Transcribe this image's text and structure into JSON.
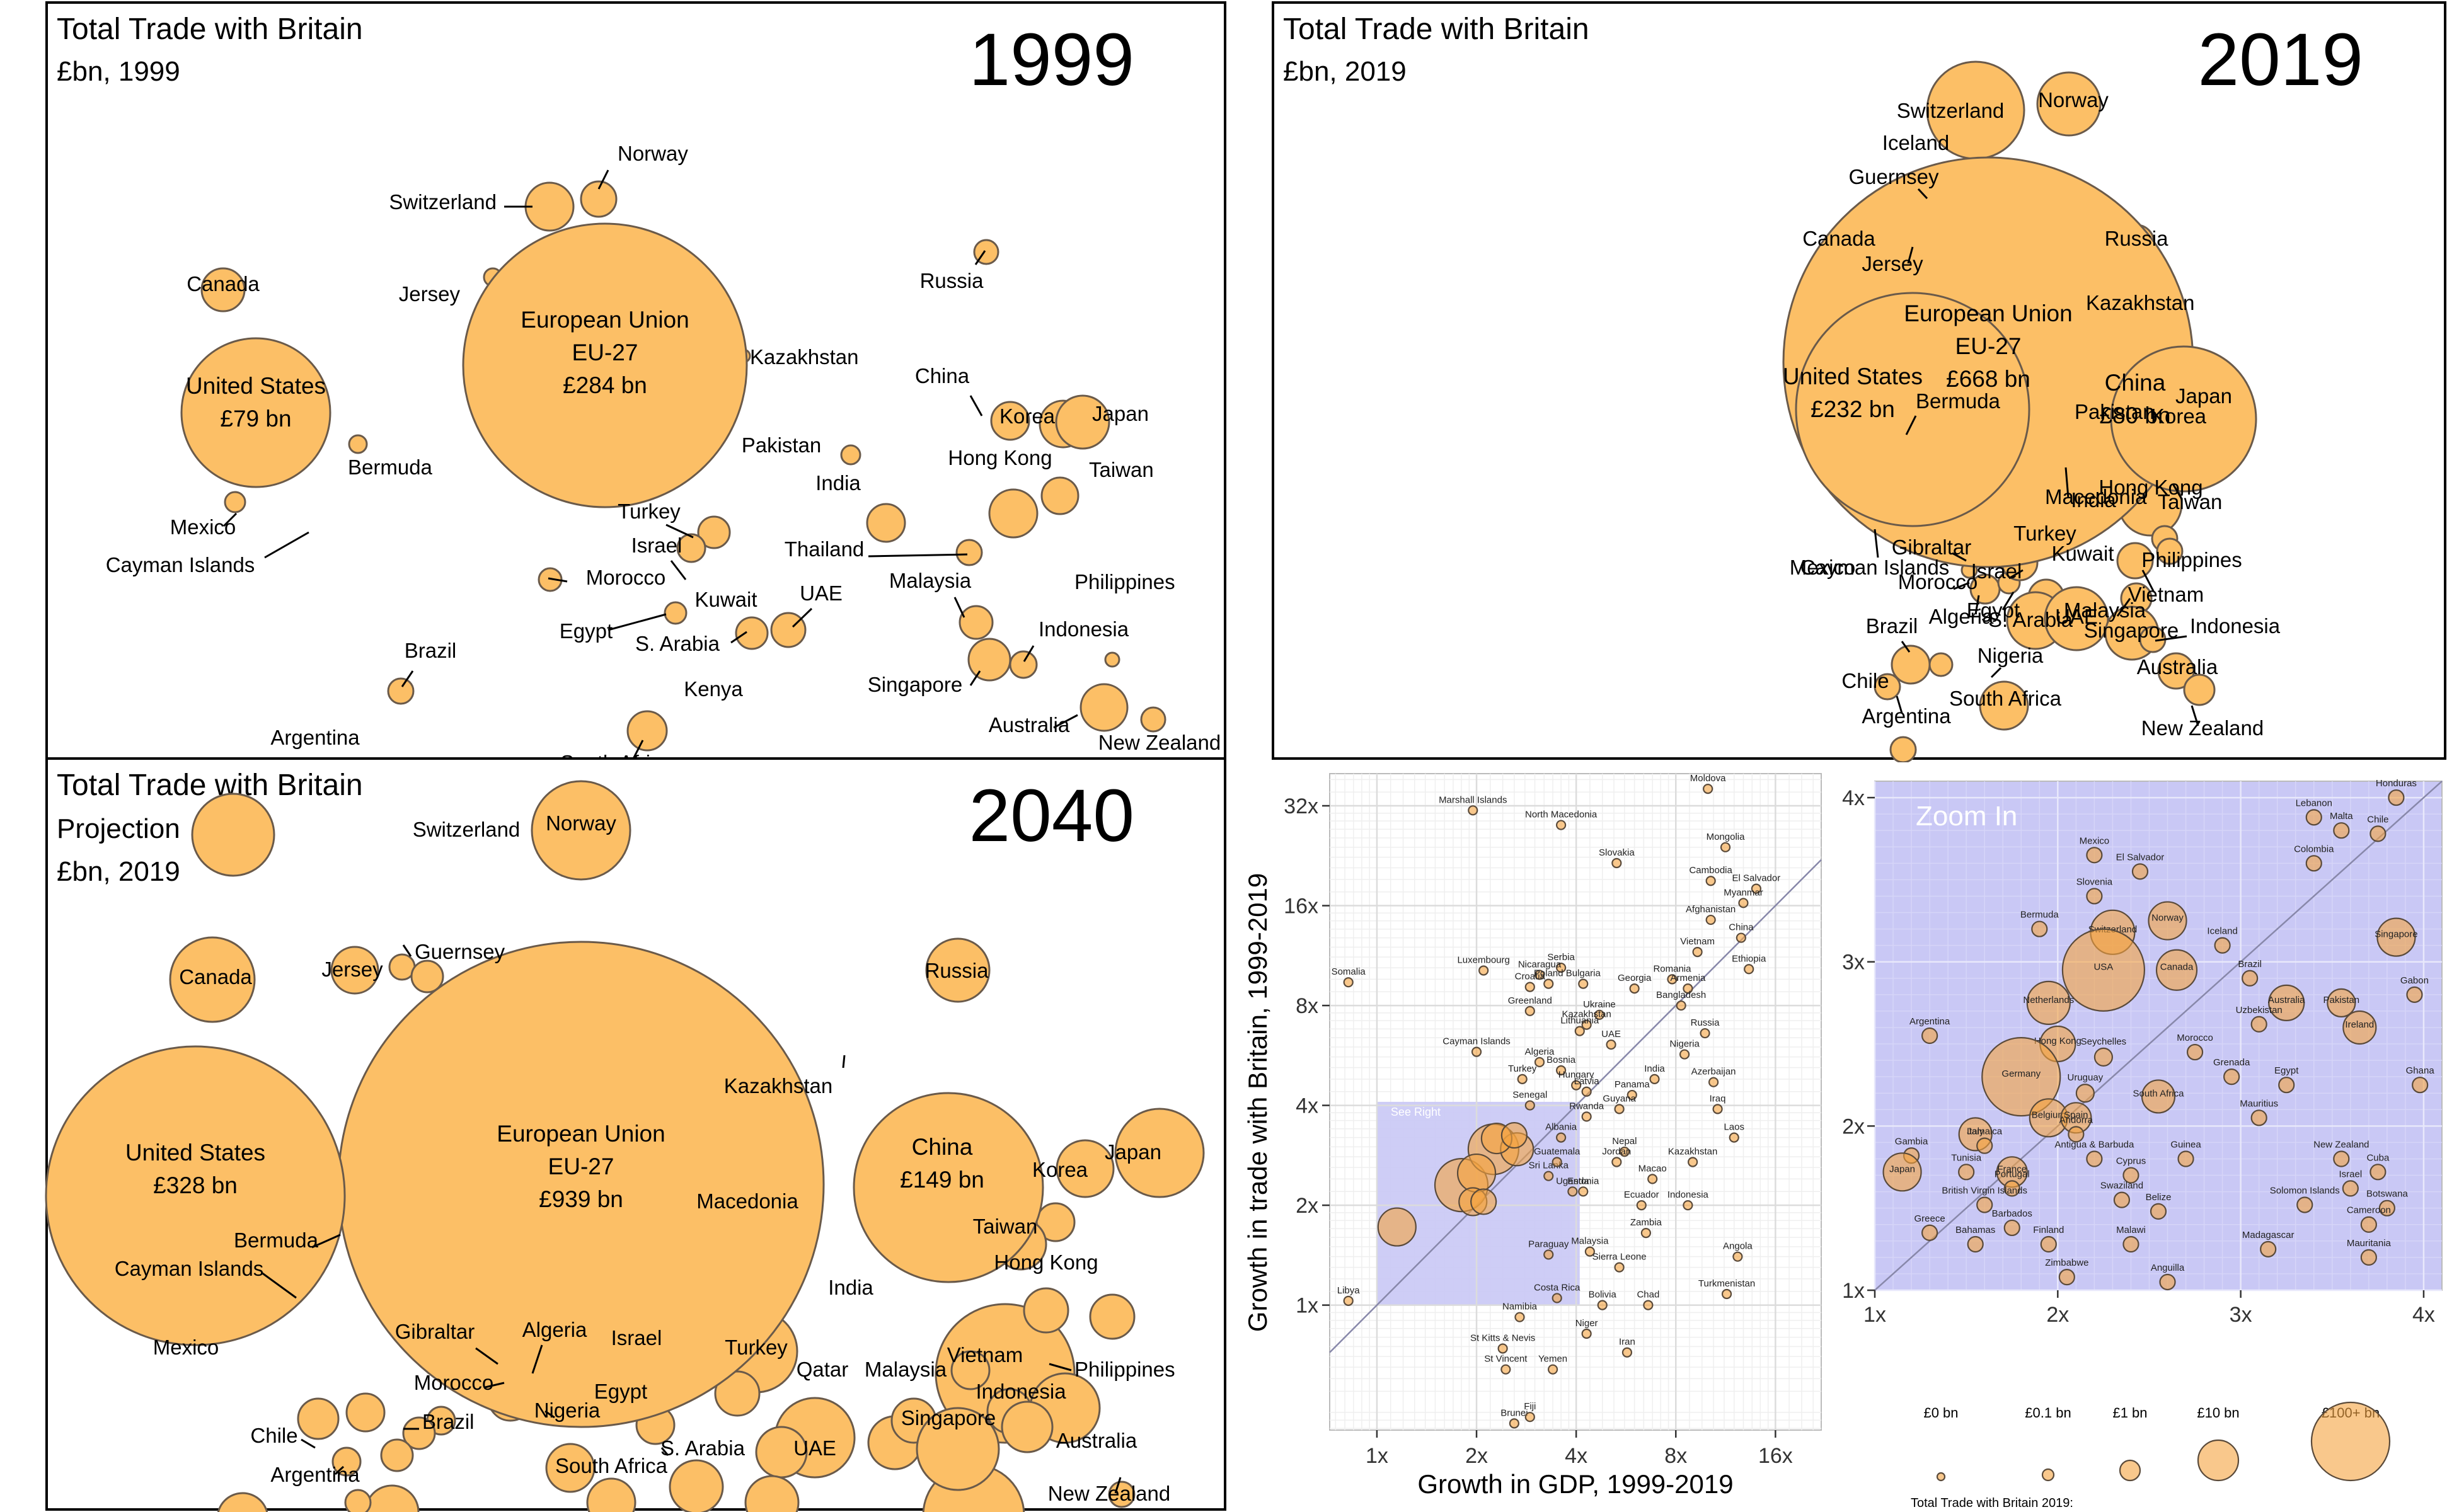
{
  "colors": {
    "bubble": "#fcbf66",
    "bubble_stroke": "#6a5a4a",
    "zoom_fill": "#c9c8f5",
    "grid": "#e6e6e6"
  },
  "chart_data": [
    {
      "type": "scatter",
      "title": "Total Trade with Britain",
      "subtitle": "£bn, 1999",
      "year": "1999",
      "featured": [
        {
          "name": "European Union",
          "sub": "EU-27",
          "value": "£284 bn"
        },
        {
          "name": "United States",
          "value": "£79 bn"
        }
      ],
      "labels": [
        "Norway",
        "Switzerland",
        "Jersey",
        "Canada",
        "Kazakhstan",
        "Russia",
        "China",
        "Korea",
        "Japan",
        "Pakistan",
        "Hong Kong",
        "Taiwan",
        "Bermuda",
        "India",
        "Mexico",
        "Cayman Islands",
        "Turkey",
        "Israel",
        "Morocco",
        "Thailand",
        "Kuwait",
        "UAE",
        "Malaysia",
        "Philippines",
        "Egypt",
        "S. Arabia",
        "Indonesia",
        "Brazil",
        "Kenya",
        "Singapore",
        "Australia",
        "New Zealand",
        "Argentina",
        "South Africa"
      ]
    },
    {
      "type": "scatter",
      "title": "Total Trade with Britain",
      "subtitle": "£bn, 2019",
      "year": "2019",
      "featured": [
        {
          "name": "European Union",
          "sub": "EU-27",
          "value": "£668 bn"
        },
        {
          "name": "United States",
          "value": "£232 bn"
        },
        {
          "name": "China",
          "value": "£80 bn"
        }
      ],
      "labels": [
        "Switzerland",
        "Norway",
        "Iceland",
        "Guernsey",
        "Canada",
        "Jersey",
        "Russia",
        "Kazakhstan",
        "Bermuda",
        "Pakistan",
        "Japan",
        "Korea",
        "Macedonia",
        "India",
        "Hong Kong",
        "Taiwan",
        "Mexico",
        "Cayman Islands",
        "Gibraltar",
        "Turkey",
        "Kuwait",
        "Philippines",
        "Morocco",
        "Israel",
        "Vietnam",
        "Algeria",
        "Egypt",
        "S. Arabia",
        "UAE",
        "Malaysia",
        "Singapore",
        "Indonesia",
        "Brazil",
        "Nigeria",
        "Australia",
        "Chile",
        "South Africa",
        "Argentina",
        "New Zealand"
      ]
    },
    {
      "type": "scatter",
      "title": "Total Trade with Britain",
      "subtitle_lines": [
        "Projection",
        "£bn, 2019"
      ],
      "year": "2040",
      "featured": [
        {
          "name": "European Union",
          "sub": "EU-27",
          "value": "£939 bn"
        },
        {
          "name": "United States",
          "value": "£328 bn"
        },
        {
          "name": "China",
          "value": "£149 bn"
        }
      ],
      "labels": [
        "Switzerland",
        "Norway",
        "Guernsey",
        "Jersey",
        "Canada",
        "Russia",
        "Kazakhstan",
        "Japan",
        "Korea",
        "Taiwan",
        "Macedonia",
        "Hong Kong",
        "Bermuda",
        "Cayman Islands",
        "India",
        "Mexico",
        "Gibraltar",
        "Algeria",
        "Israel",
        "Turkey",
        "Vietnam",
        "Philippines",
        "Morocco",
        "Qatar",
        "Malaysia",
        "Indonesia",
        "Egypt",
        "Nigeria",
        "Singapore",
        "Chile",
        "Brazil",
        "S. Arabia",
        "UAE",
        "Australia",
        "South Africa",
        "Argentina",
        "New Zealand"
      ]
    },
    {
      "type": "scatter",
      "xlabel": "Growth in GDP, 1999-2019",
      "ylabel": "Growth in trade with Britain, 1999-2019",
      "x_scale": "log2",
      "y_scale": "log2",
      "xticks": [
        "1x",
        "2x",
        "4x",
        "8x",
        "16x"
      ],
      "yticks": [
        "1x",
        "2x",
        "4x",
        "8x",
        "16x",
        "32x"
      ],
      "xlim": [
        0.72,
        22
      ],
      "ylim": [
        0.42,
        40
      ],
      "region_label": "See Right",
      "points": [
        {
          "name": "Moldova",
          "x": 10,
          "y": 36
        },
        {
          "name": "Marshall Islands",
          "x": 1.95,
          "y": 31
        },
        {
          "name": "North Macedonia",
          "x": 3.6,
          "y": 28
        },
        {
          "name": "Mongolia",
          "x": 11.3,
          "y": 24
        },
        {
          "name": "Slovakia",
          "x": 5.3,
          "y": 21.5
        },
        {
          "name": "Cambodia",
          "x": 10.2,
          "y": 19
        },
        {
          "name": "El Salvador",
          "x": 14,
          "y": 18
        },
        {
          "name": "Myanmar",
          "x": 12.8,
          "y": 16.3
        },
        {
          "name": "Afghanistan",
          "x": 10.2,
          "y": 14.5
        },
        {
          "name": "China",
          "x": 12.6,
          "y": 12.8
        },
        {
          "name": "Vietnam",
          "x": 9.3,
          "y": 11.6
        },
        {
          "name": "Ethiopia",
          "x": 13.3,
          "y": 10.3
        },
        {
          "name": "Somalia",
          "x": 0.82,
          "y": 9.4
        },
        {
          "name": "Luxembourg",
          "x": 2.1,
          "y": 10.2
        },
        {
          "name": "Serbia",
          "x": 3.6,
          "y": 10.4
        },
        {
          "name": "Nicaragua",
          "x": 3.1,
          "y": 9.9
        },
        {
          "name": "Romania",
          "x": 7.8,
          "y": 9.6
        },
        {
          "name": "Croatia",
          "x": 2.9,
          "y": 9.1
        },
        {
          "name": "Poland",
          "x": 3.3,
          "y": 9.3
        },
        {
          "name": "Bulgaria",
          "x": 4.2,
          "y": 9.3
        },
        {
          "name": "Georgia",
          "x": 6.0,
          "y": 9.0
        },
        {
          "name": "Armenia",
          "x": 8.7,
          "y": 9.0
        },
        {
          "name": "Bangladesh",
          "x": 8.3,
          "y": 8.0
        },
        {
          "name": "Greenland",
          "x": 2.9,
          "y": 7.7
        },
        {
          "name": "Ukraine",
          "x": 4.7,
          "y": 7.5
        },
        {
          "name": "Kazakhstan",
          "x": 4.3,
          "y": 7.0
        },
        {
          "name": "Lithuania",
          "x": 4.1,
          "y": 6.7
        },
        {
          "name": "Russia",
          "x": 9.8,
          "y": 6.6
        },
        {
          "name": "UAE",
          "x": 5.1,
          "y": 6.1
        },
        {
          "name": "Cayman Islands",
          "x": 2.0,
          "y": 5.8
        },
        {
          "name": "Nigeria",
          "x": 8.5,
          "y": 5.7
        },
        {
          "name": "Algeria",
          "x": 3.1,
          "y": 5.4
        },
        {
          "name": "Bosnia",
          "x": 3.6,
          "y": 5.1
        },
        {
          "name": "Turkey",
          "x": 2.75,
          "y": 4.8
        },
        {
          "name": "Hungary",
          "x": 4.0,
          "y": 4.6
        },
        {
          "name": "India",
          "x": 6.9,
          "y": 4.8
        },
        {
          "name": "Azerbaijan",
          "x": 10.4,
          "y": 4.7
        },
        {
          "name": "Latvia",
          "x": 4.3,
          "y": 4.4
        },
        {
          "name": "Panama",
          "x": 5.9,
          "y": 4.3
        },
        {
          "name": "Senegal",
          "x": 2.9,
          "y": 4.0
        },
        {
          "name": "Guyana",
          "x": 5.4,
          "y": 3.9
        },
        {
          "name": "Iraq",
          "x": 10.7,
          "y": 3.9
        },
        {
          "name": "Rwanda",
          "x": 4.3,
          "y": 3.7
        },
        {
          "name": "Laos",
          "x": 12.0,
          "y": 3.2
        },
        {
          "name": "Nepal",
          "x": 5.6,
          "y": 2.9
        },
        {
          "name": "Jordan",
          "x": 5.3,
          "y": 2.7
        },
        {
          "name": "Kazakhstan",
          "x": 9.0,
          "y": 2.7
        },
        {
          "name": "Macao",
          "x": 6.8,
          "y": 2.4
        },
        {
          "name": "Estonia",
          "x": 4.2,
          "y": 2.2
        },
        {
          "name": "Uganda",
          "x": 3.9,
          "y": 2.2
        },
        {
          "name": "Ecuador",
          "x": 6.3,
          "y": 2.0
        },
        {
          "name": "Indonesia",
          "x": 8.7,
          "y": 2.0
        },
        {
          "name": "Zambia",
          "x": 6.5,
          "y": 1.65
        },
        {
          "name": "Malaysia",
          "x": 4.4,
          "y": 1.45
        },
        {
          "name": "Paraguay",
          "x": 3.3,
          "y": 1.42
        },
        {
          "name": "Angola",
          "x": 12.3,
          "y": 1.4
        },
        {
          "name": "Sierra Leone",
          "x": 5.4,
          "y": 1.3
        },
        {
          "name": "Turkmenistan",
          "x": 11.4,
          "y": 1.08
        },
        {
          "name": "Costa Rica",
          "x": 3.5,
          "y": 1.05
        },
        {
          "name": "Bolivia",
          "x": 4.8,
          "y": 1.0
        },
        {
          "name": "Chad",
          "x": 6.6,
          "y": 1.0
        },
        {
          "name": "Libya",
          "x": 0.82,
          "y": 1.03
        },
        {
          "name": "Namibia",
          "x": 2.7,
          "y": 0.92
        },
        {
          "name": "Niger",
          "x": 4.3,
          "y": 0.82
        },
        {
          "name": "St Kitts & Nevis",
          "x": 2.4,
          "y": 0.74
        },
        {
          "name": "Iran",
          "x": 5.7,
          "y": 0.72
        },
        {
          "name": "St Vincent",
          "x": 2.45,
          "y": 0.64
        },
        {
          "name": "Yemen",
          "x": 3.4,
          "y": 0.64
        },
        {
          "name": "Brunei",
          "x": 2.6,
          "y": 0.44
        },
        {
          "name": "Fiji",
          "x": 2.9,
          "y": 0.46
        },
        {
          "name": "Sri Lanka",
          "x": 3.3,
          "y": 2.45
        },
        {
          "name": "Albania",
          "x": 3.6,
          "y": 3.2
        },
        {
          "name": "Guatemala",
          "x": 3.5,
          "y": 2.7
        }
      ]
    },
    {
      "type": "scatter",
      "title": "Zoom In",
      "xticks": [
        "1x",
        "2x",
        "3x",
        "4x"
      ],
      "yticks": [
        "1x",
        "2x",
        "3x",
        "4x"
      ],
      "xlim": [
        1,
        4.1
      ],
      "ylim": [
        1,
        4.1
      ],
      "points": [
        {
          "name": "Honduras",
          "x": 3.85,
          "y": 4.0
        },
        {
          "name": "Lebanon",
          "x": 3.4,
          "y": 3.88
        },
        {
          "name": "Malta",
          "x": 3.55,
          "y": 3.8
        },
        {
          "name": "Chile",
          "x": 3.75,
          "y": 3.78
        },
        {
          "name": "Mexico",
          "x": 2.2,
          "y": 3.65
        },
        {
          "name": "El Salvador",
          "x": 2.45,
          "y": 3.55
        },
        {
          "name": "Colombia",
          "x": 3.4,
          "y": 3.6
        },
        {
          "name": "Slovenia",
          "x": 2.2,
          "y": 3.4
        },
        {
          "name": "Bermuda",
          "x": 1.9,
          "y": 3.2
        },
        {
          "name": "Switzerland",
          "x": 2.3,
          "y": 3.18
        },
        {
          "name": "Norway",
          "x": 2.6,
          "y": 3.25
        },
        {
          "name": "Iceland",
          "x": 2.9,
          "y": 3.1
        },
        {
          "name": "Singapore",
          "x": 3.85,
          "y": 3.15
        },
        {
          "name": "USA",
          "x": 2.25,
          "y": 2.95
        },
        {
          "name": "Canada",
          "x": 2.65,
          "y": 2.95
        },
        {
          "name": "Brazil",
          "x": 3.05,
          "y": 2.9
        },
        {
          "name": "Gabon",
          "x": 3.95,
          "y": 2.8
        },
        {
          "name": "Netherlands",
          "x": 1.95,
          "y": 2.75
        },
        {
          "name": "Australia",
          "x": 3.25,
          "y": 2.75
        },
        {
          "name": "Pakistan",
          "x": 3.55,
          "y": 2.75
        },
        {
          "name": "Uzbekistan",
          "x": 3.1,
          "y": 2.62
        },
        {
          "name": "Ireland",
          "x": 3.65,
          "y": 2.6
        },
        {
          "name": "Argentina",
          "x": 1.3,
          "y": 2.55
        },
        {
          "name": "Hong Kong",
          "x": 2.0,
          "y": 2.5
        },
        {
          "name": "Seychelles",
          "x": 2.25,
          "y": 2.42
        },
        {
          "name": "Morocco",
          "x": 2.75,
          "y": 2.45
        },
        {
          "name": "Germany",
          "x": 1.8,
          "y": 2.3
        },
        {
          "name": "Grenada",
          "x": 2.95,
          "y": 2.3
        },
        {
          "name": "Egypt",
          "x": 3.25,
          "y": 2.25
        },
        {
          "name": "Ghana",
          "x": 3.98,
          "y": 2.25
        },
        {
          "name": "Uruguay",
          "x": 2.15,
          "y": 2.2
        },
        {
          "name": "South Africa",
          "x": 2.55,
          "y": 2.18
        },
        {
          "name": "Belgium",
          "x": 1.95,
          "y": 2.05
        },
        {
          "name": "Spain",
          "x": 2.1,
          "y": 2.05
        },
        {
          "name": "Mauritius",
          "x": 3.1,
          "y": 2.05
        },
        {
          "name": "Italy",
          "x": 1.55,
          "y": 1.95
        },
        {
          "name": "Andorra",
          "x": 2.1,
          "y": 1.95
        },
        {
          "name": "Jamaica",
          "x": 1.6,
          "y": 1.88
        },
        {
          "name": "Gambia",
          "x": 1.2,
          "y": 1.82
        },
        {
          "name": "Antigua & Barbuda",
          "x": 2.2,
          "y": 1.8
        },
        {
          "name": "Guinea",
          "x": 2.7,
          "y": 1.8
        },
        {
          "name": "New Zealand",
          "x": 3.55,
          "y": 1.8
        },
        {
          "name": "Japan",
          "x": 1.15,
          "y": 1.72
        },
        {
          "name": "Tunisia",
          "x": 1.5,
          "y": 1.72
        },
        {
          "name": "France",
          "x": 1.75,
          "y": 1.72
        },
        {
          "name": "Cuba",
          "x": 3.75,
          "y": 1.72
        },
        {
          "name": "Cyprus",
          "x": 2.4,
          "y": 1.7
        },
        {
          "name": "Portugal",
          "x": 1.75,
          "y": 1.62
        },
        {
          "name": "Israel",
          "x": 3.6,
          "y": 1.62
        },
        {
          "name": "Swaziland",
          "x": 2.35,
          "y": 1.55
        },
        {
          "name": "British Virgin Islands",
          "x": 1.6,
          "y": 1.52
        },
        {
          "name": "Solomon Islands",
          "x": 3.35,
          "y": 1.52
        },
        {
          "name": "Belize",
          "x": 2.55,
          "y": 1.48
        },
        {
          "name": "Botswana",
          "x": 3.8,
          "y": 1.5
        },
        {
          "name": "Barbados",
          "x": 1.75,
          "y": 1.38
        },
        {
          "name": "Cameroon",
          "x": 3.7,
          "y": 1.4
        },
        {
          "name": "Greece",
          "x": 1.3,
          "y": 1.35
        },
        {
          "name": "Bahamas",
          "x": 1.55,
          "y": 1.28
        },
        {
          "name": "Finland",
          "x": 1.95,
          "y": 1.28
        },
        {
          "name": "Malawi",
          "x": 2.4,
          "y": 1.28
        },
        {
          "name": "Madagascar",
          "x": 3.15,
          "y": 1.25
        },
        {
          "name": "Mauritania",
          "x": 3.7,
          "y": 1.2
        },
        {
          "name": "Zimbabwe",
          "x": 2.05,
          "y": 1.08
        },
        {
          "name": "Anguilla",
          "x": 2.6,
          "y": 1.05
        }
      ]
    },
    {
      "type": "legend",
      "title": "Total Trade with Britain 2019:",
      "entries": [
        "£0 bn",
        "£0.1 bn",
        "£1 bn",
        "£10 bn",
        "£100+ bn"
      ],
      "values": [
        0,
        0.1,
        1,
        10,
        100
      ]
    }
  ]
}
